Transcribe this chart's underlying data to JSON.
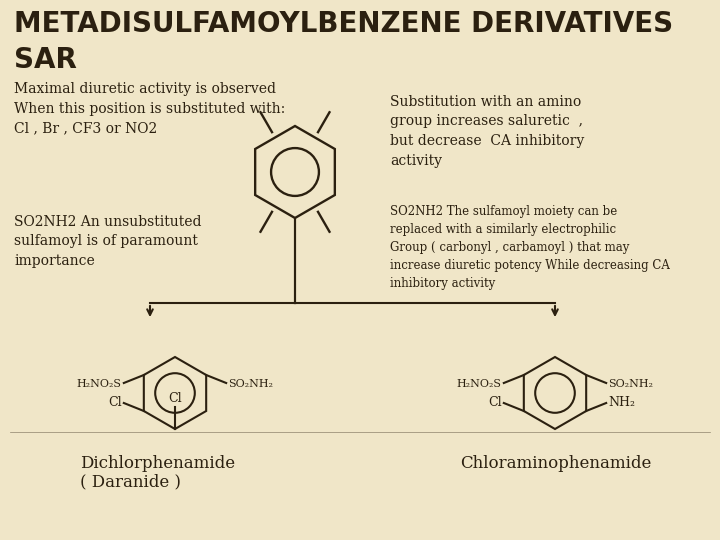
{
  "background_color": "#f0e6c8",
  "title_line1": "METADISULFAMOYLBENZENE DERIVATIVES",
  "title_line2": "SAR",
  "title_color": "#2b2010",
  "title_fontsize": 20,
  "left_text1": "Maximal diuretic activity is observed\nWhen this position is substituted with:\nCl , Br , CF3 or NO2",
  "right_text1": "Substitution with an amino\ngroup increases saluretic  ,\nbut decrease  CA inhibitory\nactivity",
  "left_text2": "SO2NH2 An unsubstituted\nsulfamoyl is of paramount\nimportance",
  "right_text2": "SO2NH2 The sulfamoyl moiety can be\nreplaced with a similarly electrophilic\nGroup ( carbonyl , carbamoyl ) that may\nincrease diuretic potency While decreasing CA\ninhibitory activity",
  "bottom_left_label1": "Dichlorphenamide",
  "bottom_left_label2": "( Daranide )",
  "bottom_right_label": "Chloraminophenamide",
  "text_color": "#2b2010",
  "mol_color": "#2b2010",
  "body_fontsize": 10,
  "small_fontsize": 8.5,
  "title_bg": "#f0e6c8"
}
